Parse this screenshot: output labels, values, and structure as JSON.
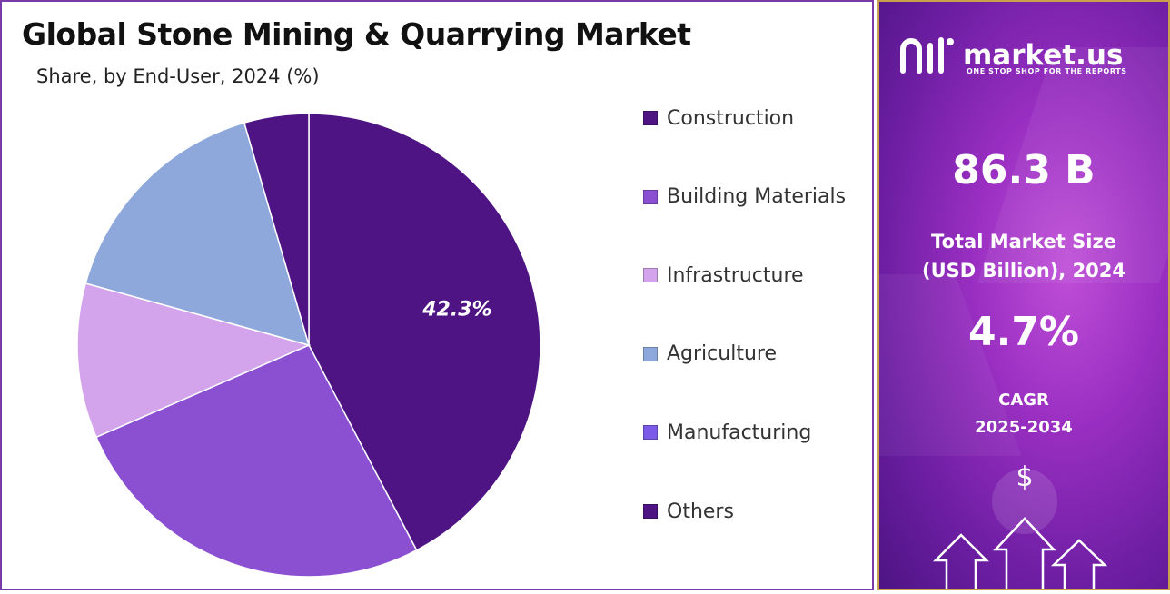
{
  "chart_data": {
    "type": "pie",
    "title": "Global Stone Mining & Quarrying Market",
    "subtitle": "Share, by End-User, 2024 (%)",
    "categories": [
      "Construction",
      "Building Materials",
      "Infrastructure",
      "Agriculture",
      "Manufacturing",
      "Others"
    ],
    "values": [
      42.3,
      26.2,
      10.8,
      16.2,
      0.0,
      4.5
    ],
    "colors": [
      "#4e1484",
      "#8b4fd2",
      "#d3a4ec",
      "#8fa8dc",
      "#7a5ae6",
      "#4e1484"
    ],
    "data_labels": [
      {
        "category": "Construction",
        "text": "42.3%"
      }
    ],
    "legend_position": "right"
  },
  "info_panel": {
    "brand_name": "market.us",
    "brand_tagline": "ONE STOP SHOP FOR THE REPORTS",
    "market_size_value": "86.3 B",
    "market_size_label_line1": "Total Market Size",
    "market_size_label_line2": "(USD Billion), 2024",
    "cagr_value": "4.7%",
    "cagr_label_line1": "CAGR",
    "cagr_label_line2": "2025-2034",
    "dollar_symbol": "$"
  }
}
